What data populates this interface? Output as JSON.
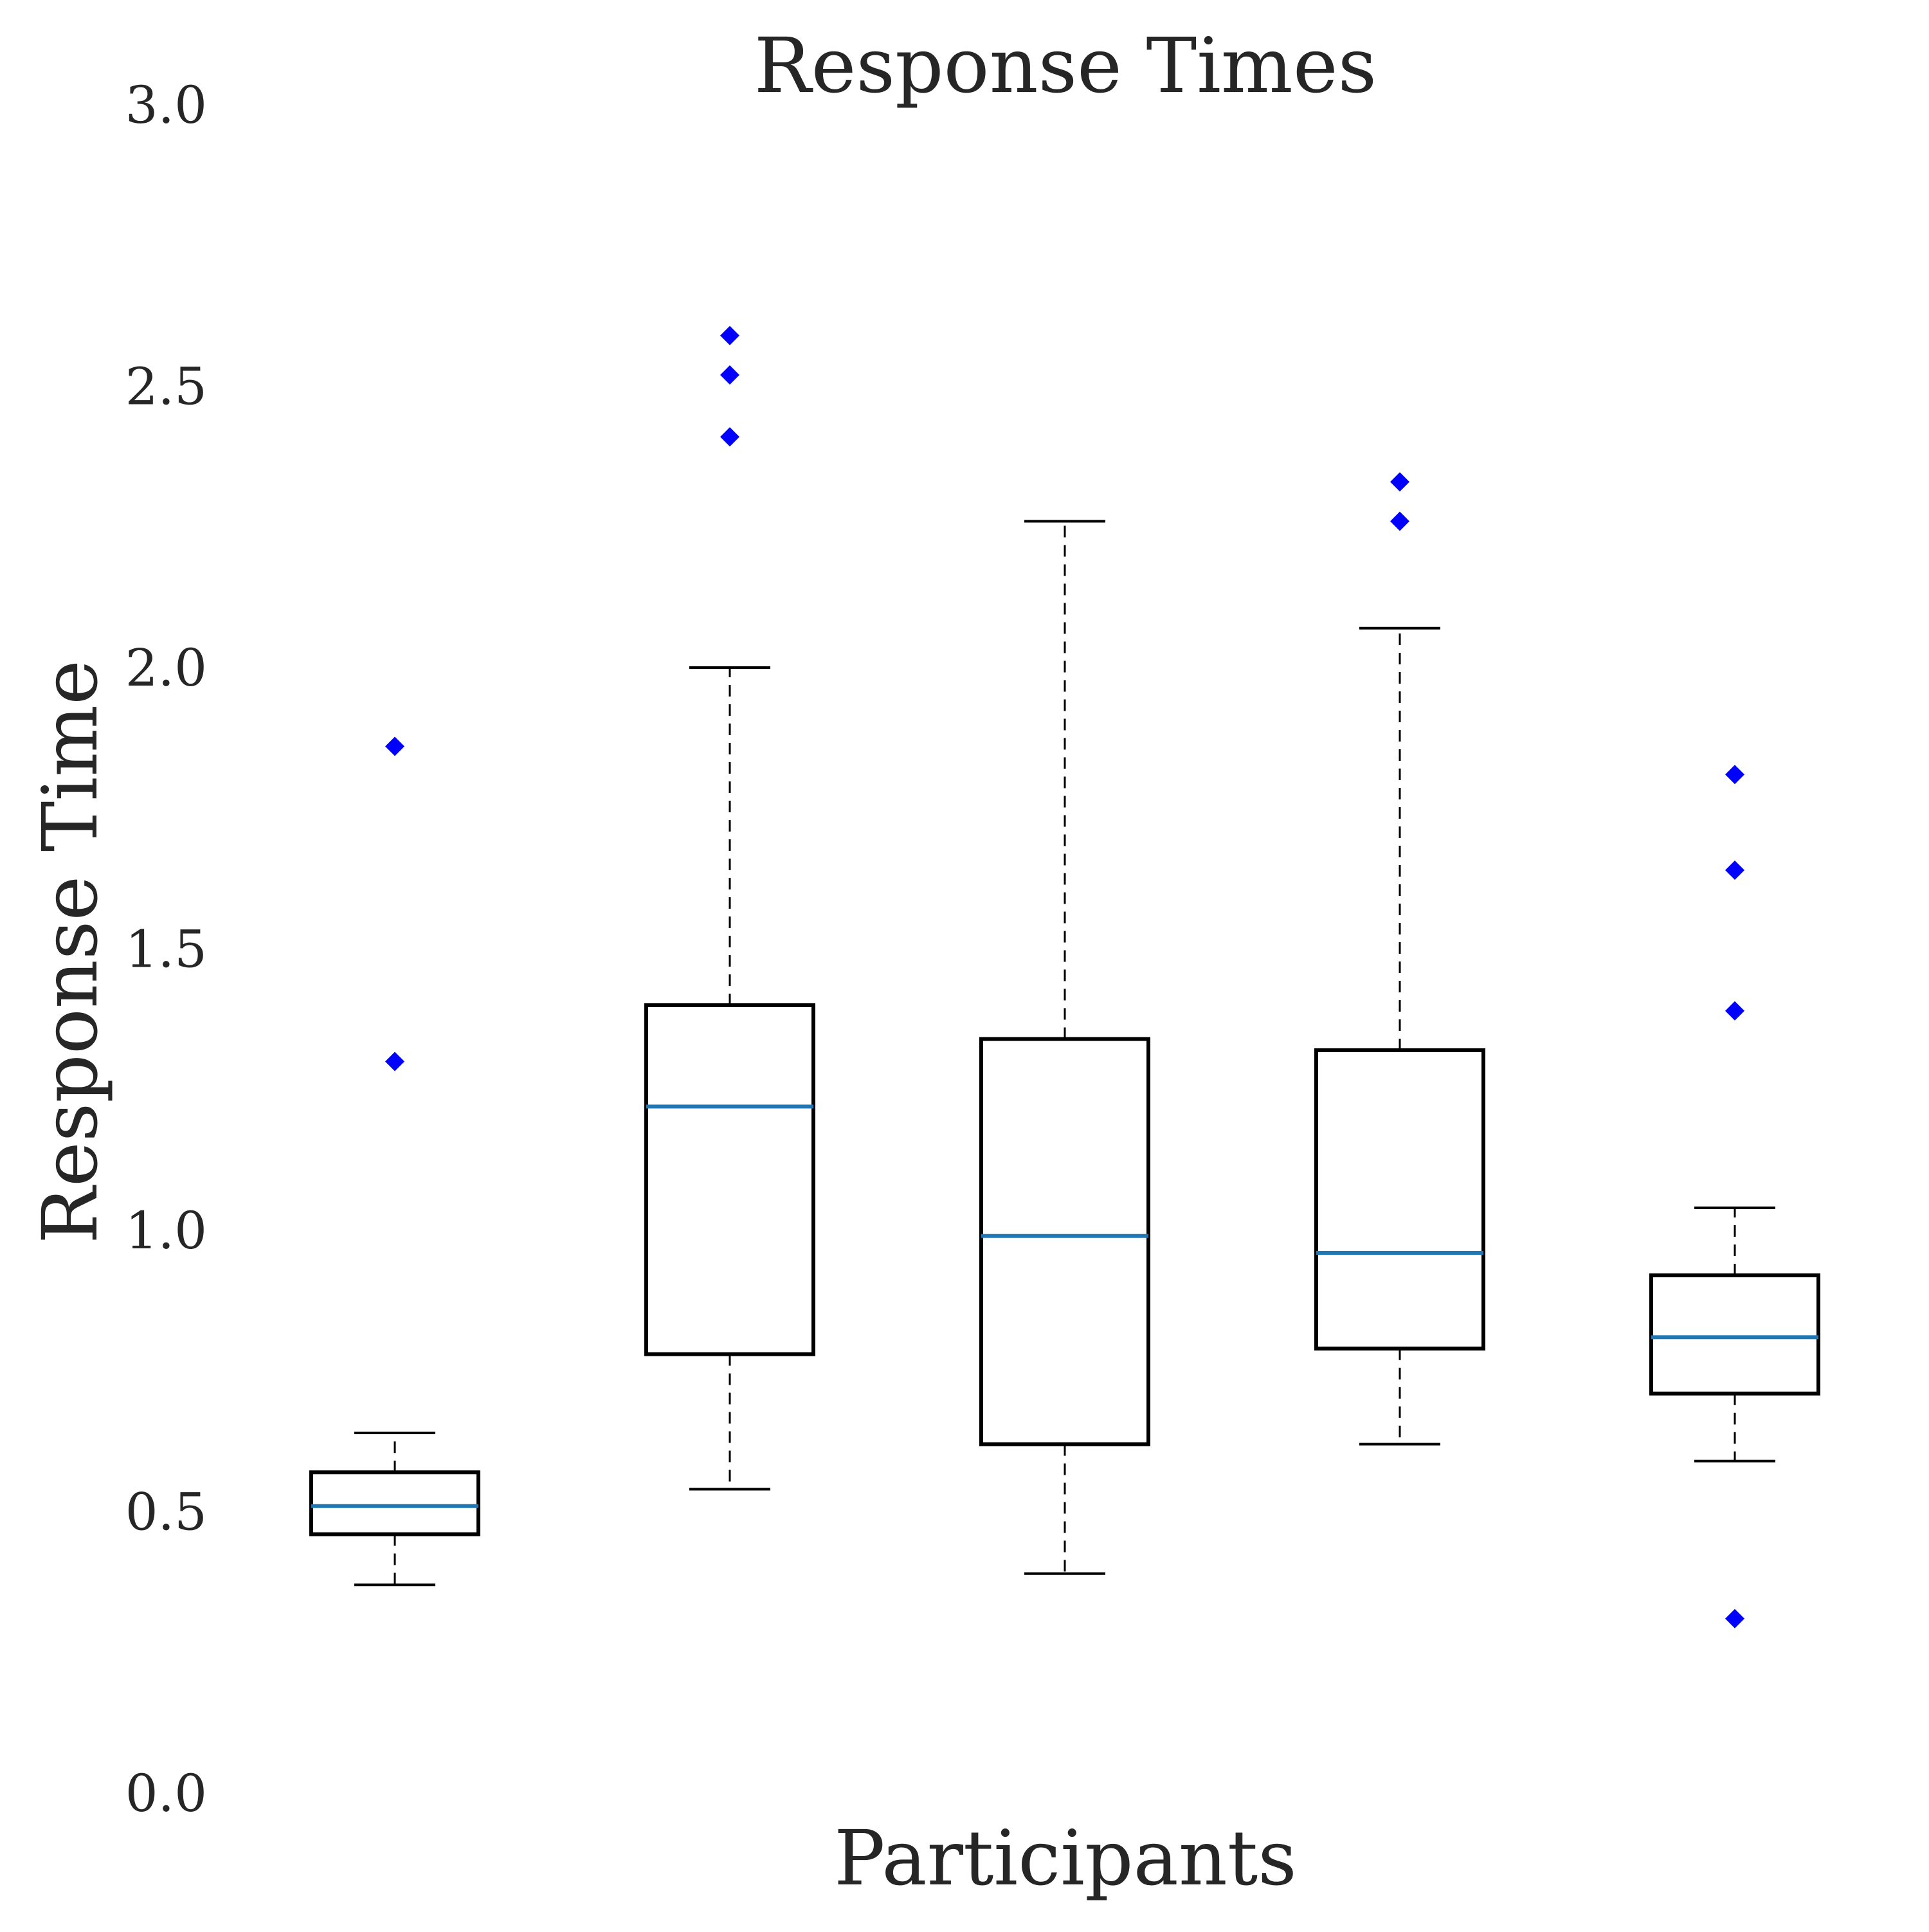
{
  "chart_data": {
    "type": "box",
    "title": "Response Times",
    "xlabel": "Participants",
    "ylabel": "Response Time",
    "ylim": [
      0.0,
      3.0
    ],
    "yticks": [
      0.0,
      0.5,
      1.0,
      1.5,
      2.0,
      2.5,
      3.0
    ],
    "ytick_labels": [
      "0.0",
      "0.5",
      "1.0",
      "1.5",
      "2.0",
      "2.5",
      "3.0"
    ],
    "grid": false,
    "box_color": "#000000",
    "median_color": "#1f77b4",
    "flier_color": "#0000ff",
    "boxes": [
      {
        "whisker_low": 0.37,
        "q1": 0.46,
        "median": 0.51,
        "q3": 0.57,
        "whisker_high": 0.64,
        "fliers": [
          1.3,
          1.86
        ]
      },
      {
        "whisker_low": 0.54,
        "q1": 0.78,
        "median": 1.22,
        "q3": 1.4,
        "whisker_high": 2.0,
        "fliers": [
          2.41,
          2.52,
          2.59
        ]
      },
      {
        "whisker_low": 0.39,
        "q1": 0.62,
        "median": 0.99,
        "q3": 1.34,
        "whisker_high": 2.26,
        "fliers": []
      },
      {
        "whisker_low": 0.62,
        "q1": 0.79,
        "median": 0.96,
        "q3": 1.32,
        "whisker_high": 2.07,
        "fliers": [
          2.26,
          2.33
        ]
      },
      {
        "whisker_low": 0.59,
        "q1": 0.71,
        "median": 0.81,
        "q3": 0.92,
        "whisker_high": 1.04,
        "fliers": [
          0.31,
          1.39,
          1.64,
          1.81
        ]
      }
    ]
  }
}
